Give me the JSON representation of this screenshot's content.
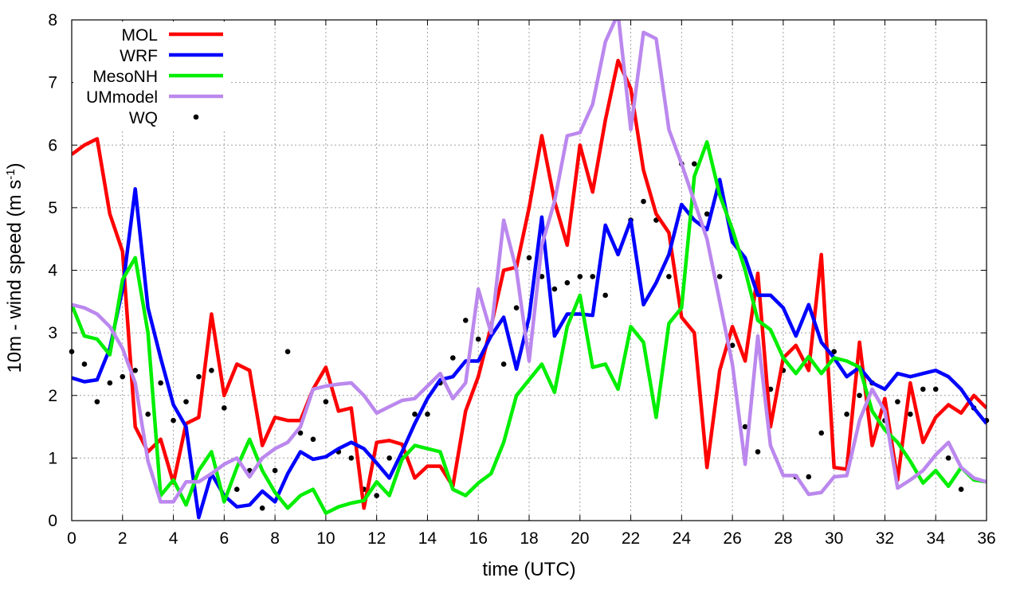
{
  "chart_data": {
    "type": "line",
    "xlabel": "time (UTC)",
    "ylabel": "10m - wind speed  (m s",
    "ylabel_superscript": "-1",
    "ylabel_suffix": ")",
    "xlim": [
      0,
      36
    ],
    "ylim": [
      0,
      8
    ],
    "x_ticks": [
      0,
      2,
      4,
      6,
      8,
      10,
      12,
      14,
      16,
      18,
      20,
      22,
      24,
      26,
      28,
      30,
      32,
      34,
      36
    ],
    "y_ticks": [
      0,
      1,
      2,
      3,
      4,
      5,
      6,
      7,
      8
    ],
    "grid": true,
    "legend_position": "top-left",
    "series": [
      {
        "name": "MOL",
        "color": "#ff0000",
        "style": "line",
        "x": [
          0,
          0.5,
          1,
          1.5,
          2,
          2.5,
          3,
          3.5,
          4,
          4.5,
          5,
          5.5,
          6,
          6.5,
          7,
          7.5,
          8,
          8.5,
          9,
          9.5,
          10,
          10.5,
          11,
          11.5,
          12,
          12.5,
          13,
          13.5,
          14,
          14.5,
          15,
          15.5,
          16,
          16.5,
          17,
          17.5,
          18,
          18.5,
          19,
          19.5,
          20,
          20.5,
          21,
          21.5,
          22,
          22.5,
          23,
          23.5,
          24,
          24.5,
          25,
          25.5,
          26,
          26.5,
          27,
          27.5,
          28,
          28.5,
          29,
          29.5,
          30,
          30.5,
          31,
          31.5,
          32,
          32.5,
          33,
          33.5,
          34,
          34.5,
          35,
          35.5,
          36
        ],
        "values": [
          5.85,
          6.0,
          6.1,
          4.9,
          4.3,
          1.5,
          1.1,
          1.3,
          0.6,
          1.55,
          1.65,
          3.3,
          2.0,
          2.5,
          2.4,
          1.2,
          1.65,
          1.6,
          1.6,
          2.1,
          2.45,
          1.75,
          1.8,
          0.2,
          1.25,
          1.28,
          1.22,
          0.68,
          0.87,
          0.87,
          0.55,
          1.75,
          2.3,
          3.1,
          4.0,
          4.05,
          5.0,
          6.15,
          5.1,
          4.4,
          6.0,
          5.25,
          6.4,
          7.35,
          6.9,
          5.6,
          4.9,
          4.6,
          3.25,
          3.0,
          0.85,
          2.4,
          3.1,
          2.55,
          3.95,
          1.5,
          2.6,
          2.8,
          2.4,
          4.25,
          0.85,
          0.82,
          2.85,
          1.2,
          1.95,
          0.65,
          2.2,
          1.25,
          1.65,
          1.85,
          1.72,
          2.0,
          1.8
        ]
      },
      {
        "name": "WRF",
        "color": "#0000ff",
        "style": "line",
        "x": [
          0,
          0.5,
          1,
          1.5,
          2,
          2.5,
          3,
          3.5,
          4,
          4.5,
          5,
          5.5,
          6,
          6.5,
          7,
          7.5,
          8,
          8.5,
          9,
          9.5,
          10,
          10.5,
          11,
          11.5,
          12,
          12.5,
          13,
          13.5,
          14,
          14.5,
          15,
          15.5,
          16,
          16.5,
          17,
          17.5,
          18,
          18.5,
          19,
          19.5,
          20,
          20.5,
          21,
          21.5,
          22,
          22.5,
          23,
          23.5,
          24,
          24.5,
          25,
          25.5,
          26,
          26.5,
          27,
          27.5,
          28,
          28.5,
          29,
          29.5,
          30,
          30.5,
          31,
          31.5,
          32,
          32.5,
          33,
          33.5,
          34,
          34.5,
          35,
          35.5,
          36
        ],
        "values": [
          2.28,
          2.22,
          2.25,
          2.75,
          3.7,
          5.3,
          3.4,
          2.6,
          1.85,
          1.5,
          0.05,
          0.75,
          0.4,
          0.22,
          0.25,
          0.47,
          0.3,
          0.75,
          1.1,
          0.98,
          1.02,
          1.15,
          1.25,
          1.15,
          0.92,
          0.68,
          1.1,
          1.55,
          1.95,
          2.25,
          2.3,
          2.55,
          2.55,
          2.95,
          3.25,
          2.42,
          3.25,
          4.85,
          2.95,
          3.3,
          3.3,
          3.28,
          4.72,
          4.25,
          4.8,
          3.45,
          3.8,
          4.25,
          5.05,
          4.8,
          4.65,
          5.45,
          4.45,
          4.2,
          3.6,
          3.6,
          3.4,
          2.95,
          3.45,
          2.85,
          2.6,
          2.3,
          2.45,
          2.2,
          2.1,
          2.35,
          2.3,
          2.35,
          2.4,
          2.3,
          2.1,
          1.8,
          1.55
        ]
      },
      {
        "name": "MesoNH",
        "color": "#00ee00",
        "style": "line",
        "x": [
          0,
          0.5,
          1,
          1.5,
          2,
          2.5,
          3,
          3.5,
          4,
          4.5,
          5,
          5.5,
          6,
          6.5,
          7,
          7.5,
          8,
          8.5,
          9,
          9.5,
          10,
          10.5,
          11,
          11.5,
          12,
          12.5,
          13,
          13.5,
          14,
          14.5,
          15,
          15.5,
          16,
          16.5,
          17,
          17.5,
          18,
          18.5,
          19,
          19.5,
          20,
          20.5,
          21,
          21.5,
          22,
          22.5,
          23,
          23.5,
          24,
          24.5,
          25,
          25.5,
          26,
          26.5,
          27,
          27.5,
          28,
          28.5,
          29,
          29.5,
          30,
          30.5,
          31,
          31.5,
          32,
          32.5,
          33,
          33.5,
          34,
          34.5,
          35,
          35.5,
          36
        ],
        "values": [
          3.45,
          2.95,
          2.9,
          2.65,
          3.85,
          4.2,
          3.0,
          0.4,
          0.65,
          0.25,
          0.8,
          1.1,
          0.3,
          0.85,
          1.3,
          0.8,
          0.45,
          0.2,
          0.4,
          0.5,
          0.12,
          0.22,
          0.28,
          0.32,
          0.62,
          0.4,
          0.98,
          1.2,
          1.15,
          1.1,
          0.5,
          0.4,
          0.6,
          0.75,
          1.25,
          2.0,
          2.25,
          2.5,
          2.05,
          3.1,
          3.6,
          2.45,
          2.5,
          2.1,
          3.1,
          2.85,
          1.65,
          3.15,
          3.4,
          5.5,
          6.05,
          5.2,
          4.65,
          4.0,
          3.2,
          3.05,
          2.6,
          2.35,
          2.62,
          2.35,
          2.6,
          2.55,
          2.45,
          1.75,
          1.45,
          1.25,
          0.95,
          0.6,
          0.8,
          0.55,
          0.85,
          0.65,
          0.62
        ]
      },
      {
        "name": "UMmodel",
        "color": "#bb88ee",
        "style": "line",
        "x": [
          0,
          0.5,
          1,
          1.5,
          2,
          2.5,
          3,
          3.5,
          4,
          4.5,
          5,
          5.5,
          6,
          6.5,
          7,
          7.5,
          8,
          8.5,
          9,
          9.5,
          10,
          10.5,
          11,
          11.5,
          12,
          12.5,
          13,
          13.5,
          14,
          14.5,
          15,
          15.5,
          16,
          16.5,
          17,
          17.5,
          18,
          18.5,
          19,
          19.5,
          20,
          20.5,
          21,
          21.5,
          22,
          22.5,
          23,
          23.5,
          24,
          24.5,
          25,
          25.5,
          26,
          26.5,
          27,
          27.5,
          28,
          28.5,
          29,
          29.5,
          30,
          30.5,
          31,
          31.5,
          32,
          32.5,
          33,
          33.5,
          34,
          34.5,
          35,
          35.5,
          36
        ],
        "values": [
          3.45,
          3.4,
          3.3,
          3.1,
          2.75,
          2.2,
          0.95,
          0.3,
          0.3,
          0.62,
          0.62,
          0.75,
          0.9,
          1.0,
          0.7,
          1.0,
          1.15,
          1.25,
          1.5,
          2.1,
          2.15,
          2.18,
          2.2,
          2.0,
          1.72,
          1.82,
          1.92,
          1.95,
          2.15,
          2.35,
          1.95,
          2.2,
          3.7,
          3.0,
          4.8,
          4.0,
          2.55,
          4.4,
          5.1,
          6.15,
          6.2,
          6.65,
          7.65,
          8.1,
          6.25,
          7.8,
          7.7,
          6.25,
          5.7,
          5.1,
          4.5,
          3.5,
          2.5,
          0.9,
          2.95,
          1.2,
          0.72,
          0.72,
          0.42,
          0.45,
          0.7,
          0.72,
          1.6,
          2.1,
          1.75,
          0.52,
          0.65,
          0.8,
          1.05,
          1.25,
          0.85,
          0.68,
          0.62
        ]
      },
      {
        "name": "WQ",
        "color": "#000000",
        "style": "points",
        "x": [
          0,
          0.5,
          1,
          1.5,
          2,
          2.5,
          3,
          3.5,
          4,
          4.5,
          5,
          5.5,
          6,
          6.5,
          7,
          7.5,
          8,
          8.5,
          9,
          9.5,
          10,
          10.5,
          11,
          11.5,
          12,
          12.5,
          13,
          13.5,
          14,
          14.5,
          15,
          15.5,
          16,
          16.5,
          17,
          17.5,
          18,
          18.5,
          19,
          19.5,
          20,
          20.5,
          21,
          21.5,
          22,
          22.5,
          23,
          23.5,
          24,
          24.5,
          25,
          25.5,
          26,
          26.5,
          27,
          27.5,
          28,
          28.5,
          29,
          29.5,
          30,
          30.5,
          31,
          31.5,
          32,
          32.5,
          33,
          33.5,
          34,
          34.5,
          35,
          35.5,
          36
        ],
        "values": [
          2.7,
          2.5,
          1.9,
          2.2,
          2.3,
          2.4,
          1.7,
          2.2,
          1.6,
          1.9,
          2.3,
          2.4,
          1.8,
          0.5,
          0.8,
          0.2,
          0.8,
          2.7,
          1.4,
          1.3,
          1.9,
          1.1,
          1.0,
          0.5,
          0.4,
          1.0,
          1.0,
          1.7,
          1.7,
          2.2,
          2.6,
          3.2,
          2.9,
          3.0,
          2.5,
          3.4,
          4.2,
          3.9,
          3.7,
          3.8,
          3.9,
          3.9,
          3.6,
          4.3,
          4.8,
          5.1,
          4.8,
          3.9,
          5.7,
          5.7,
          4.9,
          3.9,
          2.8,
          1.5,
          1.1,
          2.1,
          2.4,
          0.7,
          0.7,
          1.4,
          2.7,
          1.7,
          2.0,
          2.2,
          1.6,
          1.9,
          1.7,
          2.1,
          2.1,
          1.0,
          0.5,
          1.8,
          1.6
        ]
      }
    ]
  }
}
